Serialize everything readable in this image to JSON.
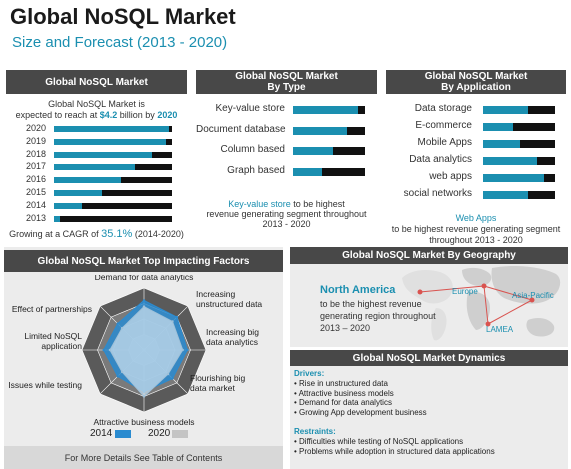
{
  "header": {
    "title": "Global NoSQL Market",
    "subtitle": "Size and Forecast (2013 - 2020)"
  },
  "market_panel": {
    "heading": "Global NoSQL Market",
    "intro_line1": "Global NoSQL Market is",
    "intro_line2_pre": "expected to reach at",
    "intro_value": "$4.2",
    "intro_line2_mid": "billion by",
    "intro_year": "2020",
    "cagr_pre": "Growing at a CAGR of",
    "cagr_value": "35.1%",
    "cagr_post": "(2014-2020)"
  },
  "type_panel": {
    "heading_line1": "Global NoSQL Market",
    "heading_line2": "By Type",
    "note_highlight": "Key-value store",
    "note_rest1": "to be highest",
    "note_line2": "revenue generating segment throughout",
    "note_line3": "2013 - 2020"
  },
  "app_panel": {
    "heading_line1": "Global NoSQL Market",
    "heading_line2": "By Application",
    "note_highlight": "Web Apps",
    "note_line2": "to be highest revenue generating segment",
    "note_line3": "throughout 2013 - 2020"
  },
  "factors_panel": {
    "heading": "Global NoSQL Market Top Impacting Factors",
    "labels": [
      "Demand for data analytics",
      "Increasing\nunstructured data",
      "Increasing big\ndata analytics",
      "Flourishing big\ndata market",
      "Attractive business models",
      "Issues while testing",
      "Limited NoSQL\napplication",
      "Effect of partnerships"
    ],
    "legend_2014": "2014",
    "legend_2020": "2020"
  },
  "geo_panel": {
    "heading": "Global NoSQL Market By Geography",
    "region_highlight": "North America",
    "note_line1": "to be the highest revenue",
    "note_line2": "generating region throughout",
    "note_line3": "2013 – 2020",
    "map_label_europe": "Europe",
    "map_label_apac": "Asia-Pacific",
    "map_label_lamea": "LAMEA"
  },
  "dynamics_panel": {
    "heading": "Global NoSQL Market Dynamics",
    "drivers_title": "Drivers:",
    "drivers": [
      "• Rise in unstructured data",
      "• Attractive business models",
      "• Demand for data analytics",
      "• Growing App development business"
    ],
    "restraints_title": "Restraints:",
    "restraints": [
      "• Difficulties while testing of NoSQL applications",
      "• Problems while adoption in structured data applications"
    ]
  },
  "footer": {
    "text": "For More Details See Table of Contents"
  },
  "colors": {
    "accent": "#1b8fb0",
    "dark": "#111111",
    "header_bg": "#484848",
    "panel_bg": "#ececec",
    "gray_2020": "#c4c4c4"
  },
  "chart_data": [
    {
      "type": "bar",
      "title": "Global NoSQL Market",
      "categories": [
        "2020",
        "2019",
        "2018",
        "2017",
        "2016",
        "2015",
        "2014",
        "2013"
      ],
      "values": [
        1.0,
        0.97,
        0.85,
        0.7,
        0.58,
        0.42,
        0.24,
        0.05
      ],
      "orientation": "horizontal",
      "note": "relative market size"
    },
    {
      "type": "bar",
      "title": "Global NoSQL Market By Type",
      "categories": [
        "Key-value store",
        "Document database",
        "Column based",
        "Graph based"
      ],
      "series": [
        {
          "name": "2014",
          "values": [
            0.9,
            0.75,
            0.55,
            0.4
          ]
        },
        {
          "name": "2020",
          "values": [
            1.0,
            1.0,
            1.0,
            1.0
          ]
        }
      ],
      "orientation": "horizontal"
    },
    {
      "type": "bar",
      "title": "Global NoSQL Market By Application",
      "categories": [
        "Data storage",
        "E-commerce",
        "Mobile Apps",
        "Data analytics",
        "web apps",
        "social networks"
      ],
      "series": [
        {
          "name": "2014",
          "values": [
            0.62,
            0.42,
            0.52,
            0.75,
            0.85,
            0.62
          ]
        },
        {
          "name": "2020",
          "values": [
            1.0,
            1.0,
            1.0,
            1.0,
            1.0,
            1.0
          ]
        }
      ],
      "orientation": "horizontal"
    },
    {
      "type": "radar",
      "title": "Global NoSQL Market Top Impacting Factors",
      "categories": [
        "Demand for data analytics",
        "Increasing unstructured data",
        "Increasing big data analytics",
        "Flourishing big data market",
        "Attractive business models",
        "Issues while testing",
        "Limited NoSQL application",
        "Effect of partnerships"
      ],
      "rmax": 4,
      "series": [
        {
          "name": "2014",
          "values": [
            3.2,
            3.0,
            2.8,
            2.6,
            2.7,
            2.4,
            2.6,
            2.4
          ]
        },
        {
          "name": "2020",
          "values": [
            2.8,
            2.6,
            2.5,
            2.2,
            3.0,
            2.0,
            2.2,
            2.0
          ]
        }
      ]
    }
  ]
}
